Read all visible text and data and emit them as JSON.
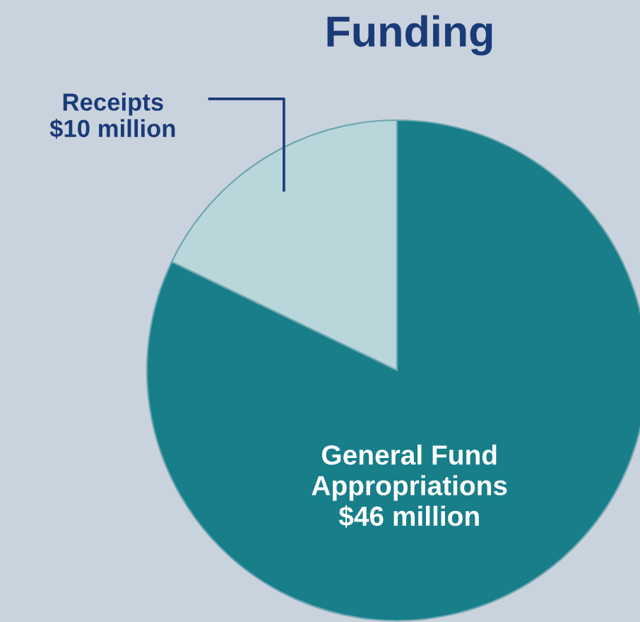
{
  "chart_data": {
    "type": "pie",
    "title": "Funding",
    "categories": [
      "Receipts",
      "General Fund Appropriations"
    ],
    "values": [
      10,
      46
    ],
    "colors": [
      "#b9d6db",
      "#177e8a"
    ],
    "value_labels": [
      "$10 million",
      "$46 million"
    ],
    "legend": false
  }
}
